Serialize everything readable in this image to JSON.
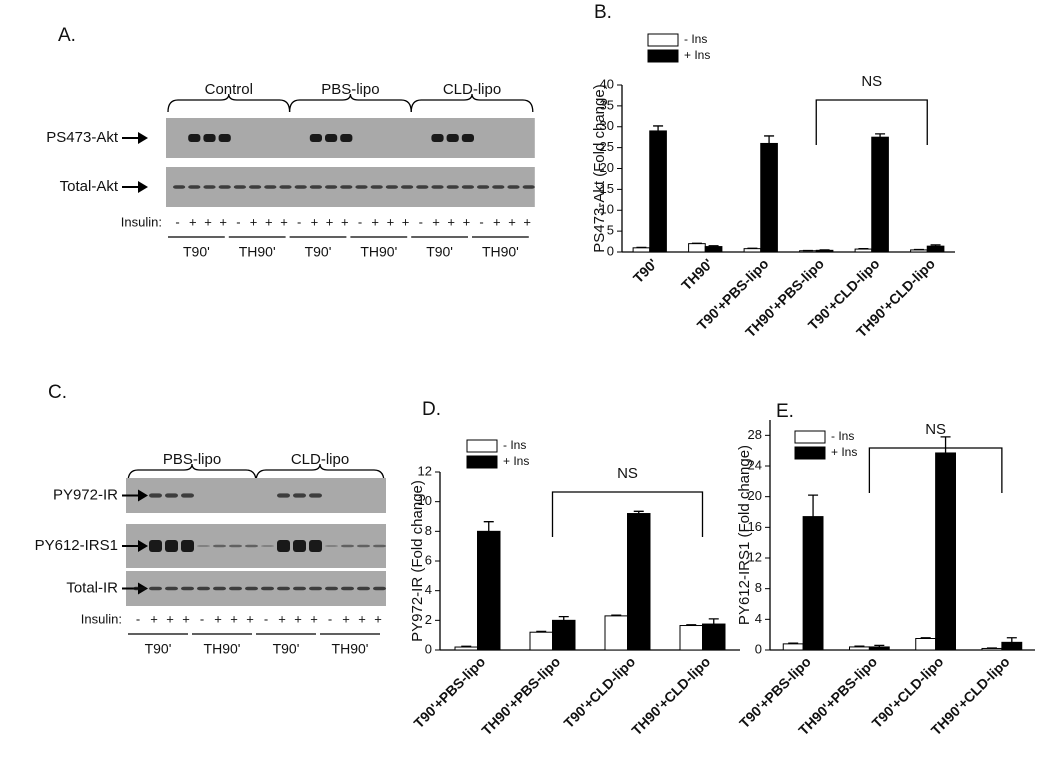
{
  "panels": {
    "A": "A.",
    "B": "B.",
    "C": "C.",
    "D": "D.",
    "E": "E."
  },
  "blot_A": {
    "groups": [
      "Control",
      "PBS-lipo",
      "CLD-lipo"
    ],
    "rows": [
      "PS473-Akt",
      "Total-Akt"
    ],
    "insulin_label": "Insulin:",
    "insulin_signs": [
      "-",
      "+",
      "+",
      "+"
    ],
    "conditions": [
      "T90'",
      "TH90'",
      "T90'",
      "TH90'",
      "T90'",
      "TH90'"
    ]
  },
  "blot_C": {
    "groups": [
      "PBS-lipo",
      "CLD-lipo"
    ],
    "rows": [
      "PY972-IR",
      "PY612-IRS1",
      "Total-IR"
    ],
    "insulin_label": "Insulin:",
    "insulin_signs": [
      "-",
      "+",
      "+",
      "+"
    ],
    "conditions": [
      "T90'",
      "TH90'",
      "T90'",
      "TH90'"
    ]
  },
  "chart_data": [
    {
      "type": "bar",
      "y_label": "PS473-Akt (Fold change)",
      "categories": [
        "T90'",
        "TH90'",
        "T90'+PBS-lipo",
        "TH90'+PBS-lipo",
        "T90'+CLD-lipo",
        "TH90'+CLD-lipo"
      ],
      "series": [
        {
          "name": "- Ins",
          "color": "#ffffff",
          "values": [
            1,
            2,
            0.8,
            0.3,
            0.7,
            0.5
          ],
          "errors": [
            0.1,
            0.1,
            0.1,
            0.05,
            0.1,
            0.1
          ]
        },
        {
          "name": "+ Ins",
          "color": "#000000",
          "values": [
            29,
            1.3,
            26,
            0.4,
            27.5,
            1.4
          ],
          "errors": [
            1.2,
            0.2,
            1.8,
            0.1,
            0.8,
            0.3
          ]
        }
      ],
      "ylim": [
        0,
        40
      ],
      "yticks": [
        0,
        5,
        10,
        15,
        20,
        25,
        30,
        35,
        40
      ],
      "annotation": "NS"
    },
    {
      "type": "bar",
      "y_label": "PY972-IR (Fold change)",
      "categories": [
        "T90'+PBS-lipo",
        "TH90'+PBS-lipo",
        "T90'+CLD-lipo",
        "TH90'+CLD-lipo"
      ],
      "series": [
        {
          "name": "- Ins",
          "color": "#ffffff",
          "values": [
            0.2,
            1.2,
            2.3,
            1.65
          ],
          "errors": [
            0.05,
            0.05,
            0.05,
            0.05
          ]
        },
        {
          "name": "+ Ins",
          "color": "#000000",
          "values": [
            8,
            2,
            9.2,
            1.75
          ],
          "errors": [
            0.65,
            0.25,
            0.15,
            0.35
          ]
        }
      ],
      "ylim": [
        0,
        12
      ],
      "yticks": [
        0,
        2,
        4,
        6,
        8,
        10,
        12
      ],
      "annotation": "NS"
    },
    {
      "type": "bar",
      "y_label": "PY612-IRS1 (Fold change)",
      "categories": [
        "T90'+PBS-lipo",
        "TH90'+PBS-lipo",
        "T90'+CLD-lipo",
        "TH90'+CLD-lipo"
      ],
      "series": [
        {
          "name": "- Ins",
          "color": "#ffffff",
          "values": [
            0.8,
            0.4,
            1.5,
            0.2
          ],
          "errors": [
            0.1,
            0.1,
            0.1,
            0.05
          ]
        },
        {
          "name": "+ Ins",
          "color": "#000000",
          "values": [
            17.4,
            0.4,
            25.7,
            1.0
          ],
          "errors": [
            2.8,
            0.2,
            2.1,
            0.6
          ]
        }
      ],
      "ylim": [
        0,
        30
      ],
      "yticks": [
        0,
        4,
        8,
        12,
        16,
        20,
        24,
        28
      ],
      "annotation": "NS"
    }
  ]
}
